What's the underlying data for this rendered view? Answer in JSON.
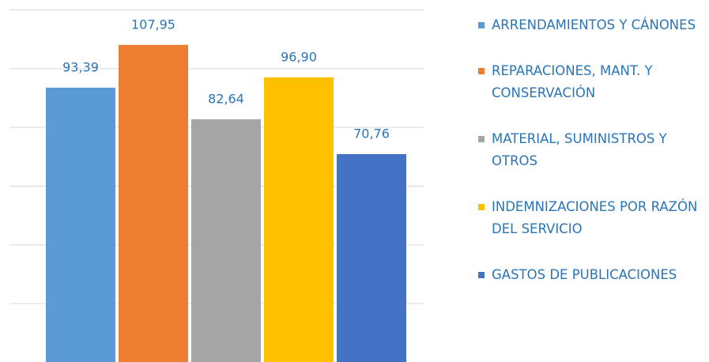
{
  "chart_data": {
    "type": "bar",
    "categories": [
      "ARRENDAMIENTOS Y CÁNONES",
      "REPARACIONES, MANT. Y CONSERVACIÓN",
      "MATERIAL, SUMINISTROS Y OTROS",
      "INDEMNIZACIONES POR RAZÓN DEL SERVICIO",
      "GASTOS DE PUBLICACIONES"
    ],
    "values": [
      93.39,
      107.95,
      82.64,
      96.9,
      70.76
    ],
    "value_labels": [
      "93,39",
      "107,95",
      "82,64",
      "96,90",
      "70,76"
    ],
    "colors": [
      "#5b9bd5",
      "#ed7d31",
      "#a5a5a5",
      "#ffc000",
      "#4472c4"
    ],
    "ylim": [
      0,
      120
    ],
    "yticks": [
      0,
      20,
      40,
      60,
      80,
      100,
      120
    ],
    "grid": true,
    "legend": "right"
  }
}
